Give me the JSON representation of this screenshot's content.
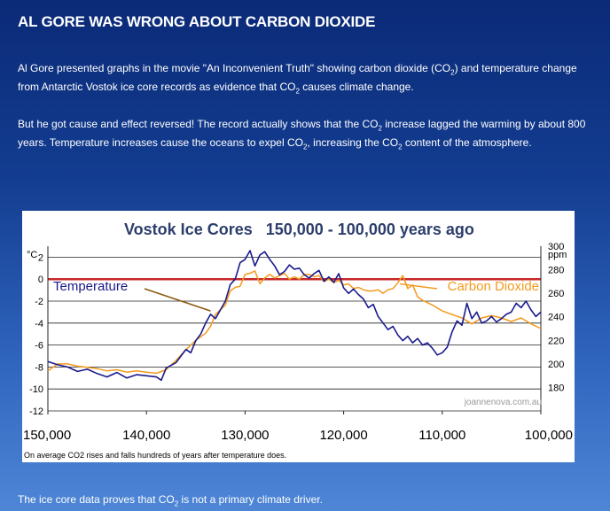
{
  "page": {
    "title": "AL GORE WAS WRONG ABOUT CARBON DIOXIDE",
    "p1_a": "Al Gore presented graphs in the movie \"An Inconvenient Truth\" showing carbon dioxide (CO",
    "p1_sub1": "2",
    "p1_b": ") and temperature change from Antarctic Vostok ice core records as evidence that CO",
    "p1_sub2": "2",
    "p1_c": " causes climate change.",
    "p2_a": "But he got cause and effect reversed! The record actually shows that the CO",
    "p2_sub1": "2",
    "p2_b": " increase lagged the warming by about 800 years. Temperature increases cause the oceans to expel CO",
    "p2_sub2": "2",
    "p2_c": ", increasing the CO",
    "p2_sub3": "2",
    "p2_d": " content of the atmosphere.",
    "footer_a": "The ice core data proves that CO",
    "footer_sub": "2",
    "footer_b": " is not a primary climate driver."
  },
  "chart_data": {
    "type": "line",
    "title": "Vostok Ice Cores   150,000 - 100,000 years ago",
    "caption": "On average CO2 rises and falls hundreds of years after temperature does.",
    "watermark": "joannenova.com.au",
    "left_unit": "°C",
    "right_unit": "ppm",
    "x_ticks": [
      "150,000",
      "140,000",
      "130,000",
      "120,000",
      "110,000",
      "100,000"
    ],
    "x_tick_values": [
      150000,
      140000,
      130000,
      120000,
      110000,
      100000
    ],
    "xlim": [
      150000,
      100000
    ],
    "y_ticks_left": [
      "2",
      "0",
      "-2",
      "-4",
      "-6",
      "-8",
      "-10",
      "-12"
    ],
    "y_tick_values_left": [
      2,
      0,
      -2,
      -4,
      -6,
      -8,
      -10,
      -12
    ],
    "ylim_left": [
      -12,
      3
    ],
    "y_ticks_right": [
      "300",
      "280",
      "260",
      "240",
      "220",
      "200",
      "180"
    ],
    "y_tick_values_right": [
      300,
      280,
      260,
      240,
      220,
      200,
      180
    ],
    "ylim_right": [
      160,
      300
    ],
    "reference_line_temperature": 0,
    "grid": true,
    "colors": {
      "temperature": "#1a1a8c",
      "carbon_dioxide": "#f39a1c",
      "zero_line": "#c62828",
      "title": "#2c3e6b"
    },
    "series": [
      {
        "name": "Temperature",
        "axis": "left",
        "x": [
          150000,
          149000,
          148000,
          147000,
          146000,
          145000,
          144000,
          143000,
          142000,
          141000,
          140000,
          139000,
          138500,
          138000,
          137000,
          136500,
          136000,
          135500,
          135000,
          134500,
          134000,
          133500,
          133000,
          132500,
          132000,
          131500,
          131000,
          130500,
          130000,
          129500,
          129000,
          128500,
          128000,
          127500,
          127000,
          126500,
          126000,
          125500,
          125000,
          124500,
          124000,
          123500,
          123000,
          122500,
          122000,
          121500,
          121000,
          120500,
          120000,
          119500,
          119000,
          118500,
          118000,
          117500,
          117000,
          116500,
          116000,
          115500,
          115000,
          114500,
          114000,
          113500,
          113000,
          112500,
          112000,
          111500,
          111000,
          110500,
          110000,
          109500,
          109000,
          108500,
          108000,
          107500,
          107000,
          106500,
          106000,
          105500,
          105000,
          104500,
          104000,
          103500,
          103000,
          102500,
          102000,
          101500,
          101000,
          100500,
          100000
        ],
        "values": [
          -7.5,
          -7.8,
          -8.0,
          -8.4,
          -8.2,
          -8.6,
          -8.9,
          -8.5,
          -9.0,
          -8.7,
          -8.8,
          -8.9,
          -9.2,
          -8.1,
          -7.6,
          -7.0,
          -6.4,
          -6.7,
          -5.6,
          -5.0,
          -4.0,
          -3.2,
          -3.6,
          -2.8,
          -2.0,
          -0.5,
          0.0,
          1.5,
          1.8,
          2.6,
          1.2,
          2.2,
          2.5,
          1.8,
          1.2,
          0.4,
          0.7,
          1.3,
          0.9,
          1.0,
          0.4,
          0.1,
          0.5,
          0.8,
          -0.2,
          0.2,
          -0.3,
          0.5,
          -0.8,
          -1.3,
          -0.9,
          -1.4,
          -1.8,
          -2.6,
          -2.3,
          -3.4,
          -4.0,
          -4.6,
          -4.3,
          -5.1,
          -5.6,
          -5.2,
          -5.8,
          -5.4,
          -6.0,
          -5.8,
          -6.3,
          -6.9,
          -6.7,
          -6.2,
          -4.8,
          -3.8,
          -4.2,
          -2.2,
          -3.6,
          -3.0,
          -4.0,
          -3.8,
          -3.4,
          -3.9,
          -3.6,
          -3.2,
          -3.0,
          -2.2,
          -2.6,
          -2.0,
          -2.8,
          -3.4,
          -3.0
        ]
      },
      {
        "name": "Carbon Dioxide",
        "axis": "right",
        "x": [
          150000,
          149000,
          148000,
          147000,
          146000,
          145000,
          144000,
          143000,
          142000,
          141000,
          140000,
          139000,
          138000,
          137000,
          136000,
          135000,
          134000,
          133500,
          133000,
          132500,
          132000,
          131500,
          131000,
          130500,
          130000,
          129500,
          129000,
          128500,
          128000,
          127500,
          127000,
          126500,
          126000,
          125500,
          125000,
          124500,
          124000,
          123500,
          123000,
          122500,
          122000,
          121500,
          121000,
          120500,
          120000,
          119500,
          119000,
          118500,
          118000,
          117500,
          117000,
          116500,
          116000,
          115500,
          115000,
          114500,
          114000,
          113500,
          113000,
          112500,
          112000,
          111000,
          110000,
          109000,
          108000,
          107000,
          106000,
          105000,
          104000,
          103000,
          102000,
          101000,
          100000
        ],
        "values": [
          194,
          200,
          200,
          198,
          197,
          196,
          194,
          195,
          193,
          194,
          193,
          192,
          195,
          203,
          212,
          220,
          226,
          232,
          242,
          246,
          250,
          262,
          265,
          266,
          276,
          277,
          279,
          268,
          273,
          276,
          273,
          275,
          277,
          272,
          274,
          272,
          276,
          276,
          274,
          275,
          270,
          272,
          269,
          271,
          267,
          268,
          264,
          265,
          263,
          262,
          262,
          263,
          260,
          263,
          264,
          269,
          275,
          264,
          267,
          257,
          254,
          250,
          245,
          242,
          239,
          234,
          239,
          241,
          239,
          236,
          239,
          234,
          230
        ]
      }
    ],
    "annotations": [
      {
        "text": "Temperature",
        "series": "Temperature"
      },
      {
        "text": "Carbon Dioxide",
        "series": "Carbon Dioxide"
      }
    ]
  }
}
